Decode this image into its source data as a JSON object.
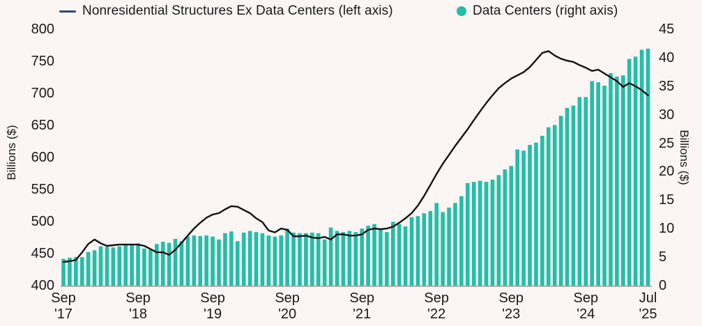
{
  "legend": {
    "items": [
      {
        "label": "Nonresidential Structures Ex Data Centers (left axis)",
        "marker": "line-dash"
      },
      {
        "label": "Data Centers (right axis)",
        "marker": "dot"
      }
    ]
  },
  "axes": {
    "left_title": "Billions ($)",
    "right_title": "Billions ($)",
    "left_ticks": [
      800,
      750,
      700,
      650,
      600,
      550,
      500,
      450,
      400
    ],
    "right_ticks": [
      45,
      40,
      35,
      30,
      25,
      20,
      15,
      10,
      5,
      0
    ]
  },
  "colors": {
    "background": "#FBF5F3",
    "bar": "#21BFA9",
    "line": "#121212",
    "legend_line_swatch": "#2E4A70",
    "axis_line": "#9D9D9D",
    "text": "#1A1A1A"
  },
  "chart_data": {
    "type": "bar+line dual-axis",
    "x_tick_indices": [
      0,
      12,
      24,
      36,
      48,
      60,
      72,
      84,
      94
    ],
    "x": [
      "Sep '17",
      "Oct '17",
      "Nov '17",
      "Dec '17",
      "Jan '18",
      "Feb '18",
      "Mar '18",
      "Apr '18",
      "May '18",
      "Jun '18",
      "Jul '18",
      "Aug '18",
      "Sep '18",
      "Oct '18",
      "Nov '18",
      "Dec '18",
      "Jan '19",
      "Feb '19",
      "Mar '19",
      "Apr '19",
      "May '19",
      "Jun '19",
      "Jul '19",
      "Aug '19",
      "Sep '19",
      "Oct '19",
      "Nov '19",
      "Dec '19",
      "Jan '20",
      "Feb '20",
      "Mar '20",
      "Apr '20",
      "May '20",
      "Jun '20",
      "Jul '20",
      "Aug '20",
      "Sep '20",
      "Oct '20",
      "Nov '20",
      "Dec '20",
      "Jan '21",
      "Feb '21",
      "Mar '21",
      "Apr '21",
      "May '21",
      "Jun '21",
      "Jul '21",
      "Aug '21",
      "Sep '21",
      "Oct '21",
      "Nov '21",
      "Dec '21",
      "Jan '22",
      "Feb '22",
      "Mar '22",
      "Apr '22",
      "May '22",
      "Jun '22",
      "Jul '22",
      "Aug '22",
      "Sep '22",
      "Oct '22",
      "Nov '22",
      "Dec '22",
      "Jan '23",
      "Feb '23",
      "Mar '23",
      "Apr '23",
      "May '23",
      "Jun '23",
      "Jul '23",
      "Aug '23",
      "Sep '23",
      "Oct '23",
      "Nov '23",
      "Dec '23",
      "Jan '24",
      "Feb '24",
      "Mar '24",
      "Apr '24",
      "May '24",
      "Jun '24",
      "Jul '24",
      "Aug '24",
      "Sep '24",
      "Oct '24",
      "Nov '24",
      "Dec '24",
      "Jan '25",
      "Feb '25",
      "Mar '25",
      "Apr '25",
      "May '25",
      "Jun '25",
      "Jul '25"
    ],
    "series": [
      {
        "name": "Nonresidential Structures Ex Data Centers",
        "type": "line",
        "axis": "left",
        "ylim": [
          400,
          800
        ],
        "values": [
          437,
          438,
          440,
          452,
          465,
          472,
          466,
          462,
          463,
          464,
          464,
          464,
          464,
          462,
          457,
          452,
          452,
          448,
          456,
          467,
          478,
          489,
          498,
          506,
          511,
          513,
          519,
          524,
          523,
          518,
          513,
          505,
          499,
          486,
          483,
          489,
          487,
          477,
          477,
          478,
          475,
          474,
          476,
          472,
          480,
          480,
          478,
          478,
          480,
          487,
          489,
          488,
          489,
          492,
          498,
          505,
          513,
          525,
          540,
          557,
          574,
          590,
          604,
          618,
          631,
          644,
          658,
          672,
          685,
          697,
          708,
          716,
          723,
          728,
          733,
          741,
          752,
          763,
          766,
          759,
          754,
          751,
          749,
          744,
          740,
          735,
          737,
          731,
          725,
          719,
          710,
          716,
          711,
          705,
          697
        ]
      },
      {
        "name": "Data Centers",
        "type": "bar",
        "axis": "right",
        "ylim": [
          0,
          45
        ],
        "values": [
          4.7,
          4.9,
          5.0,
          5.0,
          5.9,
          6.2,
          6.9,
          6.8,
          6.7,
          6.9,
          7.1,
          7.3,
          7.4,
          6.5,
          6.3,
          7.3,
          7.7,
          7.5,
          8.2,
          7.8,
          8.6,
          8.8,
          8.7,
          8.8,
          8.6,
          8.1,
          9.2,
          9.5,
          7.8,
          9.3,
          9.6,
          9.4,
          9.2,
          8.8,
          8.6,
          8.8,
          10.0,
          9.3,
          9.2,
          9.2,
          9.3,
          9.2,
          8.1,
          10.2,
          9.6,
          9.4,
          9.6,
          9.4,
          10.0,
          10.5,
          10.8,
          9.8,
          9.4,
          11.2,
          10.8,
          10.4,
          12.0,
          12.2,
          12.7,
          13.1,
          14.5,
          12.9,
          13.7,
          14.5,
          15.7,
          18.0,
          18.2,
          18.4,
          18.2,
          18.6,
          19.4,
          20.4,
          21.0,
          23.9,
          23.7,
          24.7,
          25.1,
          26.3,
          27.8,
          28.2,
          29.8,
          31.2,
          31.6,
          33.1,
          33.1,
          35.9,
          35.7,
          35.1,
          37.3,
          36.7,
          36.9,
          39.8,
          40.2,
          41.4,
          41.6
        ]
      }
    ],
    "grid": false,
    "legend_position": "top"
  }
}
